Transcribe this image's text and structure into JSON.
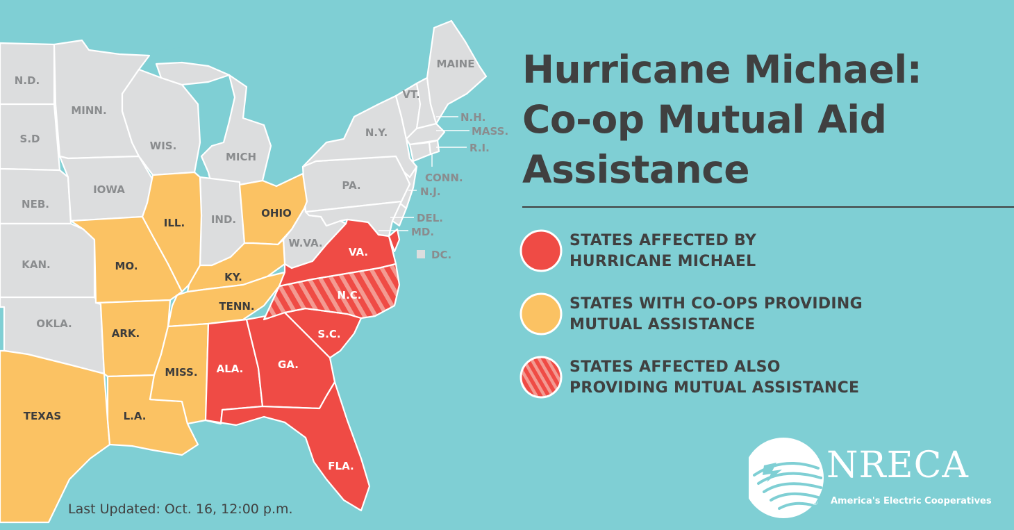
{
  "title": {
    "line1": "Hurricane Michael:",
    "line2": "Co-op Mutual Aid",
    "line3": "Assistance"
  },
  "colors": {
    "ocean": "#7fcfd4",
    "unaffected": "#dcddde",
    "affected": "#ef4b45",
    "providing": "#fbc263",
    "affected_and_providing_stripe": "#f39a92",
    "text": "#404040"
  },
  "legend": [
    {
      "key": "affected",
      "line1": "STATES AFFECTED BY",
      "line2": "HURRICANE MICHAEL"
    },
    {
      "key": "providing",
      "line1": "STATES WITH CO-OPS PROVIDING",
      "line2": "MUTUAL ASSISTANCE"
    },
    {
      "key": "both",
      "line1": "STATES AFFECTED ALSO",
      "line2": "PROVIDING MUTUAL ASSISTANCE"
    }
  ],
  "states": {
    "nd": "N.D.",
    "sd": "S.D",
    "neb": "NEB.",
    "kan": "KAN.",
    "okla": "OKLA.",
    "texas": "TEXAS",
    "minn": "MINN.",
    "iowa": "IOWA",
    "mo": "MO.",
    "ark": "ARK.",
    "la": "L.A.",
    "wis": "WIS.",
    "ill": "ILL.",
    "mich": "MICH",
    "ind": "IND.",
    "ohio": "OHIO",
    "ky": "KY.",
    "tenn": "TENN.",
    "miss": "MISS.",
    "ala": "ALA.",
    "ga": "GA.",
    "fla": "FLA.",
    "sc": "S.C.",
    "nc": "N.C.",
    "va": "VA.",
    "wva": "W.VA.",
    "pa": "PA.",
    "ny": "N.Y.",
    "vt": "VT.",
    "maine": "MAINE",
    "nh": "N.H.",
    "mass": "MASS.",
    "ri": "R.I.",
    "conn": "CONN.",
    "nj": "N.J.",
    "del": "DEL.",
    "md": "MD.",
    "dc": "DC."
  },
  "status": {
    "affected": [
      "Virginia",
      "North Carolina",
      "South Carolina",
      "Georgia",
      "Alabama",
      "Florida"
    ],
    "providing": [
      "Texas",
      "Louisiana",
      "Arkansas",
      "Missouri",
      "Illinois",
      "Ohio",
      "Kentucky",
      "Tennessee",
      "Mississippi"
    ],
    "affected_and_providing": [
      "North Carolina"
    ]
  },
  "last_updated": "Last Updated: Oct. 16, 12:00 p.m.",
  "logo": {
    "name": "NRECA",
    "registered": "®",
    "tagline": "America's Electric Cooperatives"
  }
}
